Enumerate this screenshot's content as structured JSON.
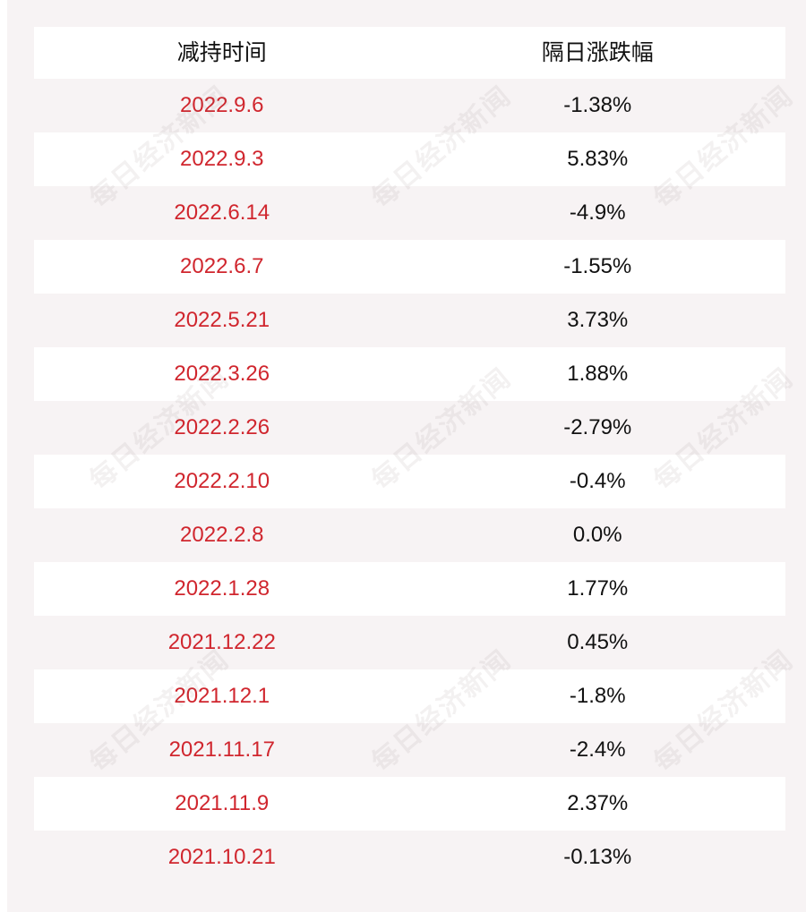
{
  "table": {
    "headers": {
      "date": "减持时间",
      "change": "隔日涨跌幅"
    },
    "rows": [
      {
        "date": "2022.9.6",
        "change": "-1.38%"
      },
      {
        "date": "2022.9.3",
        "change": "5.83%"
      },
      {
        "date": "2022.6.14",
        "change": "-4.9%"
      },
      {
        "date": "2022.6.7",
        "change": "-1.55%"
      },
      {
        "date": "2022.5.21",
        "change": "3.73%"
      },
      {
        "date": "2022.3.26",
        "change": "1.88%"
      },
      {
        "date": "2022.2.26",
        "change": "-2.79%"
      },
      {
        "date": "2022.2.10",
        "change": "-0.4%"
      },
      {
        "date": "2022.2.8",
        "change": "0.0%"
      },
      {
        "date": "2022.1.28",
        "change": "1.77%"
      },
      {
        "date": "2021.12.22",
        "change": "0.45%"
      },
      {
        "date": "2021.12.1",
        "change": "-1.8%"
      },
      {
        "date": "2021.11.17",
        "change": "-2.4%"
      },
      {
        "date": "2021.11.9",
        "change": "2.37%"
      },
      {
        "date": "2021.10.21",
        "change": "-0.13%"
      }
    ]
  },
  "watermark": {
    "text": "每日经济新闻"
  },
  "colors": {
    "date_text": "#d0262e",
    "change_text": "#111111",
    "row_tint": "#f7f3f4",
    "row_light": "#ffffff"
  }
}
